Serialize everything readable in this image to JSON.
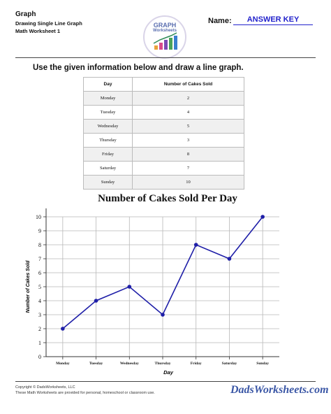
{
  "header": {
    "title": "Graph",
    "subtitle": "Drawing Single Line Graph",
    "worksheet": "Math Worksheet 1",
    "name_label": "Name:",
    "name_value": "ANSWER KEY",
    "logo_top": "GRAPH",
    "logo_bottom": "Worksheets"
  },
  "instructions": "Use the given information below and draw a line graph.",
  "table": {
    "headers": [
      "Day",
      "Number of Cakes Sold"
    ],
    "rows": [
      [
        "Monday",
        "2"
      ],
      [
        "Tuesday",
        "4"
      ],
      [
        "Wednesday",
        "5"
      ],
      [
        "Thursday",
        "3"
      ],
      [
        "Friday",
        "8"
      ],
      [
        "Saturday",
        "7"
      ],
      [
        "Sunday",
        "10"
      ]
    ]
  },
  "chart_data": {
    "type": "line",
    "title": "Number of Cakes Sold Per Day",
    "xlabel": "Day",
    "ylabel": "Number of Cakes Sold",
    "categories": [
      "Monday",
      "Tuesday",
      "Wednesday",
      "Thursday",
      "Friday",
      "Saturday",
      "Sunday"
    ],
    "series": [
      {
        "values": [
          2,
          4,
          5,
          3,
          8,
          7,
          10
        ]
      }
    ],
    "ylim": [
      0,
      10
    ],
    "yticks": [
      0,
      1,
      2,
      3,
      4,
      5,
      6,
      7,
      8,
      9,
      10
    ],
    "grid": true,
    "line_color": "#1f1fa8"
  },
  "footer": {
    "copyright": "Copyright © DadsWorksheets, LLC",
    "note": "These Math Worksheets are provided for personal, homeschool or classroom use.",
    "brand": "DadsWorksheets.com"
  }
}
